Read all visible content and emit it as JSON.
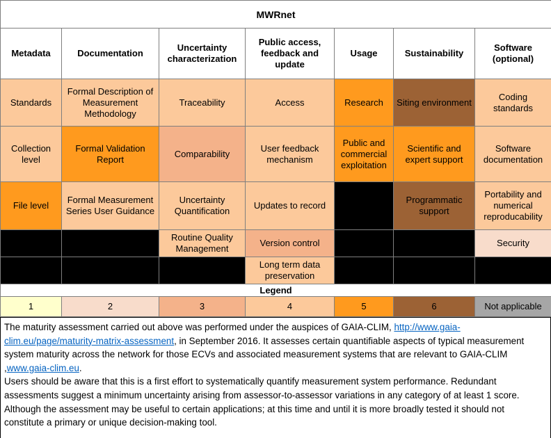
{
  "title": "MWRnet",
  "headers": [
    "Metadata",
    "Documentation",
    "Uncertainty characterization",
    "Public access, feedback and update",
    "Usage",
    "Sustainability",
    "Software (optional)"
  ],
  "rows": [
    [
      {
        "text": "Standards",
        "level": 4
      },
      {
        "text": "Formal Description of Measurement Methodology",
        "level": 4
      },
      {
        "text": "Traceability",
        "level": 4
      },
      {
        "text": "Access",
        "level": 4
      },
      {
        "text": "Research",
        "level": 5
      },
      {
        "text": "Siting environment",
        "level": 6
      },
      {
        "text": "Coding standards",
        "level": 4
      }
    ],
    [
      {
        "text": "Collection level",
        "level": 4
      },
      {
        "text": "Formal Validation Report",
        "level": 5
      },
      {
        "text": "Comparability",
        "level": 3
      },
      {
        "text": "User feedback mechanism",
        "level": 4
      },
      {
        "text": "Public and commercial exploitation",
        "level": 5
      },
      {
        "text": "Scientific and expert support",
        "level": 5
      },
      {
        "text": "Software documentation",
        "level": 4
      }
    ],
    [
      {
        "text": "File level",
        "level": 5
      },
      {
        "text": "Formal Measurement Series User Guidance",
        "level": 4
      },
      {
        "text": "Uncertainty Quantification",
        "level": 4
      },
      {
        "text": "Updates to record",
        "level": 4
      },
      null,
      {
        "text": "Programmatic support",
        "level": 6
      },
      {
        "text": "Portability and numerical reproducability",
        "level": 4
      }
    ],
    [
      null,
      null,
      {
        "text": "Routine Quality Management",
        "level": 4
      },
      {
        "text": "Version control",
        "level": 3
      },
      null,
      null,
      {
        "text": "Security",
        "level": 2
      }
    ],
    [
      null,
      null,
      null,
      {
        "text": "Long term data preservation",
        "level": 4
      },
      null,
      null,
      null
    ]
  ],
  "legend": {
    "title": "Legend",
    "items": [
      {
        "label": "1",
        "color": "#ffffcc"
      },
      {
        "label": "2",
        "color": "#f8dccb"
      },
      {
        "label": "3",
        "color": "#f4b28a"
      },
      {
        "label": "4",
        "color": "#fcc99b"
      },
      {
        "label": "5",
        "color": "#ff9a1e"
      },
      {
        "label": "6",
        "color": "#9c6235"
      },
      {
        "label": "Not applicable",
        "color": "#a6a6a6"
      }
    ]
  },
  "note": {
    "paragraphs": [
      [
        {
          "text": "The  maturity assessment carried out above was performed under the auspices of GAIA-CLIM,  "
        },
        {
          "link": "http://www.gaia-clim.eu/page/maturity-matrix-assessment"
        },
        {
          "text": ", in September 2016. It assesses certain quantifiable aspects of typical measurement system maturity across the network for those ECVs and associated measurement systems that are relevant to GAIA-CLIM ,"
        },
        {
          "link": "www.gaia-clim.eu"
        },
        {
          "text": "."
        }
      ],
      [
        {
          "text": "Users should be aware that this is a first effort to systematically quantify measurement system performance. Redundant assessments suggest a minimum uncertainty arising from assessor-to-assessor variations in any category of at least 1 score. Although the assessment may be useful to certain applications; at this time and until it is more broadly tested it should not constitute a primary or unique decision-making tool."
        }
      ]
    ]
  }
}
